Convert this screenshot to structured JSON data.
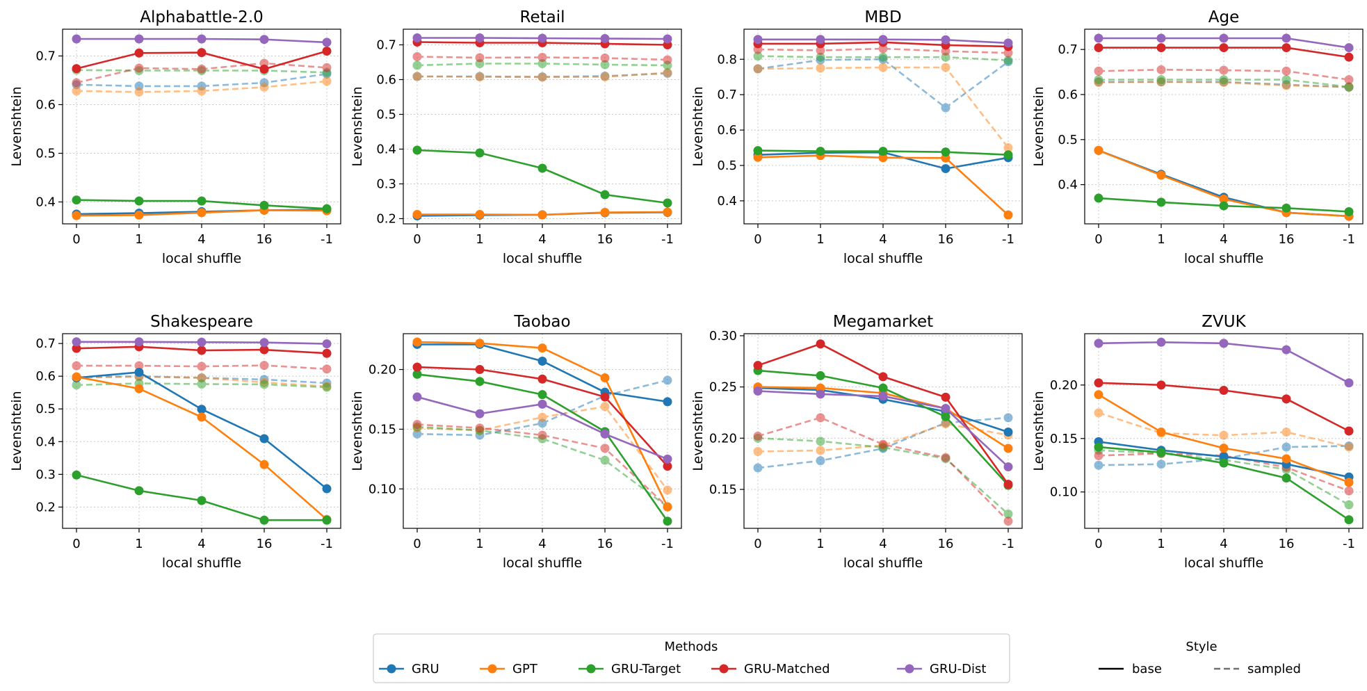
{
  "figure": {
    "x_ticks": [
      "0",
      "1",
      "4",
      "16",
      "-1"
    ],
    "legend_methods": {
      "title": "Methods"
    },
    "legend_style": {
      "title": "Style",
      "items": [
        {
          "label": "base",
          "dash": "solid"
        },
        {
          "label": "sampled",
          "dash": "dashed"
        }
      ]
    },
    "colors": {
      "GRU": "#1f77b4",
      "GPT": "#ff7f0e",
      "GRU-Target": "#2ca02c",
      "GRU-Matched": "#d62728",
      "GRU-Dist": "#9467bd"
    },
    "legend_placement": "bottom-center (Methods), bottom-right (Style)",
    "grid": true
  },
  "chart_data": [
    {
      "type": "line",
      "title": "Alphabattle-2.0",
      "xlabel": "local shuffle",
      "ylabel": "Levenshtein",
      "categories": [
        "0",
        "1",
        "4",
        "16",
        "-1"
      ],
      "ylim": [
        0.355,
        0.755
      ],
      "yticks": [
        0.4,
        0.5,
        0.6,
        0.7
      ],
      "series": [
        {
          "name": "GRU",
          "style": "base",
          "values": [
            0.375,
            0.377,
            0.38,
            0.383,
            0.384
          ]
        },
        {
          "name": "GPT",
          "style": "base",
          "values": [
            0.372,
            0.373,
            0.378,
            0.383,
            0.382
          ]
        },
        {
          "name": "GRU-Target",
          "style": "base",
          "values": [
            0.404,
            0.402,
            0.402,
            0.393,
            0.386
          ]
        },
        {
          "name": "GRU-Matched",
          "style": "base",
          "values": [
            0.674,
            0.706,
            0.707,
            0.673,
            0.71
          ]
        },
        {
          "name": "GRU-Dist",
          "style": "base",
          "values": [
            0.735,
            0.735,
            0.735,
            0.734,
            0.728
          ]
        },
        {
          "name": "GRU",
          "style": "sampled",
          "values": [
            0.641,
            0.638,
            0.638,
            0.645,
            0.663
          ]
        },
        {
          "name": "GPT",
          "style": "sampled",
          "values": [
            0.628,
            0.626,
            0.628,
            0.636,
            0.648
          ]
        },
        {
          "name": "GRU-Target",
          "style": "sampled",
          "values": [
            0.671,
            0.67,
            0.67,
            0.67,
            0.666
          ]
        },
        {
          "name": "GRU-Matched",
          "style": "sampled",
          "values": [
            0.645,
            0.675,
            0.673,
            0.685,
            0.676
          ]
        }
      ]
    },
    {
      "type": "line",
      "title": "Retail",
      "xlabel": "local shuffle",
      "ylabel": "Levenshtein",
      "categories": [
        "0",
        "1",
        "4",
        "16",
        "-1"
      ],
      "ylim": [
        0.185,
        0.745
      ],
      "yticks": [
        0.2,
        0.3,
        0.4,
        0.5,
        0.6,
        0.7
      ],
      "series": [
        {
          "name": "GRU",
          "style": "base",
          "values": [
            0.208,
            0.21,
            0.211,
            0.217,
            0.218
          ]
        },
        {
          "name": "GPT",
          "style": "base",
          "values": [
            0.212,
            0.212,
            0.211,
            0.218,
            0.219
          ]
        },
        {
          "name": "GRU-Target",
          "style": "base",
          "values": [
            0.397,
            0.389,
            0.345,
            0.269,
            0.245
          ]
        },
        {
          "name": "GRU-Matched",
          "style": "base",
          "values": [
            0.708,
            0.706,
            0.706,
            0.703,
            0.7
          ]
        },
        {
          "name": "GRU-Dist",
          "style": "base",
          "values": [
            0.72,
            0.72,
            0.719,
            0.718,
            0.717
          ]
        },
        {
          "name": "GRU",
          "style": "sampled",
          "values": [
            0.609,
            0.609,
            0.608,
            0.61,
            0.618
          ]
        },
        {
          "name": "GPT",
          "style": "sampled",
          "values": [
            0.609,
            0.608,
            0.607,
            0.608,
            0.62
          ]
        },
        {
          "name": "GRU-Target",
          "style": "sampled",
          "values": [
            0.641,
            0.646,
            0.646,
            0.643,
            0.641
          ]
        },
        {
          "name": "GRU-Matched",
          "style": "sampled",
          "values": [
            0.666,
            0.663,
            0.664,
            0.662,
            0.657
          ]
        }
      ]
    },
    {
      "type": "line",
      "title": "MBD",
      "xlabel": "local shuffle",
      "ylabel": "Levenshtein",
      "categories": [
        "0",
        "1",
        "4",
        "16",
        "-1"
      ],
      "ylim": [
        0.335,
        0.885
      ],
      "yticks": [
        0.4,
        0.5,
        0.6,
        0.7,
        0.8
      ],
      "series": [
        {
          "name": "GRU",
          "style": "base",
          "values": [
            0.53,
            0.536,
            0.537,
            0.491,
            0.522
          ]
        },
        {
          "name": "GPT",
          "style": "base",
          "values": [
            0.523,
            0.528,
            0.522,
            0.521,
            0.36
          ]
        },
        {
          "name": "GRU-Target",
          "style": "base",
          "values": [
            0.542,
            0.54,
            0.54,
            0.538,
            0.53
          ]
        },
        {
          "name": "GRU-Matched",
          "style": "base",
          "values": [
            0.844,
            0.844,
            0.848,
            0.84,
            0.836
          ]
        },
        {
          "name": "GRU-Dist",
          "style": "base",
          "values": [
            0.856,
            0.856,
            0.856,
            0.855,
            0.846
          ]
        },
        {
          "name": "GRU",
          "style": "sampled",
          "values": [
            0.773,
            0.798,
            0.8,
            0.663,
            0.793
          ]
        },
        {
          "name": "GPT",
          "style": "sampled",
          "values": [
            0.773,
            0.775,
            0.777,
            0.777,
            0.55
          ]
        },
        {
          "name": "GRU-Target",
          "style": "sampled",
          "values": [
            0.809,
            0.806,
            0.806,
            0.806,
            0.797
          ]
        },
        {
          "name": "GRU-Matched",
          "style": "sampled",
          "values": [
            0.828,
            0.825,
            0.83,
            0.823,
            0.818
          ]
        }
      ]
    },
    {
      "type": "line",
      "title": "Age",
      "xlabel": "local shuffle",
      "ylabel": "Levenshtein",
      "categories": [
        "0",
        "1",
        "4",
        "16",
        "-1"
      ],
      "ylim": [
        0.313,
        0.745
      ],
      "yticks": [
        0.4,
        0.5,
        0.6,
        0.7
      ],
      "series": [
        {
          "name": "GRU",
          "style": "base",
          "values": [
            0.476,
            0.423,
            0.372,
            0.338,
            0.33
          ]
        },
        {
          "name": "GPT",
          "style": "base",
          "values": [
            0.476,
            0.421,
            0.368,
            0.338,
            0.33
          ]
        },
        {
          "name": "GRU-Target",
          "style": "base",
          "values": [
            0.37,
            0.361,
            0.353,
            0.348,
            0.34
          ]
        },
        {
          "name": "GRU-Matched",
          "style": "base",
          "values": [
            0.704,
            0.704,
            0.704,
            0.704,
            0.683
          ]
        },
        {
          "name": "GRU-Dist",
          "style": "base",
          "values": [
            0.725,
            0.725,
            0.725,
            0.725,
            0.704
          ]
        },
        {
          "name": "GRU",
          "style": "sampled",
          "values": [
            0.628,
            0.628,
            0.628,
            0.622,
            0.616
          ]
        },
        {
          "name": "GPT",
          "style": "sampled",
          "values": [
            0.627,
            0.628,
            0.627,
            0.62,
            0.617
          ]
        },
        {
          "name": "GRU-Target",
          "style": "sampled",
          "values": [
            0.633,
            0.633,
            0.633,
            0.633,
            0.617
          ]
        },
        {
          "name": "GRU-Matched",
          "style": "sampled",
          "values": [
            0.652,
            0.655,
            0.654,
            0.652,
            0.633
          ]
        }
      ]
    },
    {
      "type": "line",
      "title": "Shakespeare",
      "xlabel": "local shuffle",
      "ylabel": "Levenshtein",
      "categories": [
        "0",
        "1",
        "4",
        "16",
        "-1"
      ],
      "ylim": [
        0.135,
        0.73
      ],
      "yticks": [
        0.2,
        0.3,
        0.4,
        0.5,
        0.6,
        0.7
      ],
      "series": [
        {
          "name": "GRU",
          "style": "base",
          "values": [
            0.595,
            0.612,
            0.499,
            0.409,
            0.256
          ]
        },
        {
          "name": "GPT",
          "style": "base",
          "values": [
            0.598,
            0.562,
            0.475,
            0.33,
            0.162
          ]
        },
        {
          "name": "GRU-Target",
          "style": "base",
          "values": [
            0.298,
            0.25,
            0.22,
            0.16,
            0.16
          ]
        },
        {
          "name": "GRU-Matched",
          "style": "base",
          "values": [
            0.685,
            0.69,
            0.679,
            0.681,
            0.67
          ]
        },
        {
          "name": "GRU-Dist",
          "style": "base",
          "values": [
            0.705,
            0.705,
            0.704,
            0.703,
            0.699
          ]
        },
        {
          "name": "GRU",
          "style": "sampled",
          "values": [
            0.597,
            0.6,
            0.595,
            0.59,
            0.579
          ]
        },
        {
          "name": "GPT",
          "style": "sampled",
          "values": [
            0.596,
            0.598,
            0.595,
            0.581,
            0.569
          ]
        },
        {
          "name": "GRU-Target",
          "style": "sampled",
          "values": [
            0.573,
            0.578,
            0.576,
            0.575,
            0.566
          ]
        },
        {
          "name": "GRU-Matched",
          "style": "sampled",
          "values": [
            0.632,
            0.632,
            0.63,
            0.633,
            0.622
          ]
        }
      ]
    },
    {
      "type": "line",
      "title": "Taobao",
      "xlabel": "local shuffle",
      "ylabel": "Levenshtein",
      "categories": [
        "0",
        "1",
        "4",
        "16",
        "-1"
      ],
      "ylim": [
        0.067,
        0.23
      ],
      "yticks": [
        0.1,
        0.15,
        0.2
      ],
      "series": [
        {
          "name": "GRU",
          "style": "base",
          "values": [
            0.221,
            0.221,
            0.207,
            0.181,
            0.173
          ]
        },
        {
          "name": "GPT",
          "style": "base",
          "values": [
            0.223,
            0.222,
            0.218,
            0.193,
            0.085
          ]
        },
        {
          "name": "GRU-Target",
          "style": "base",
          "values": [
            0.196,
            0.19,
            0.179,
            0.148,
            0.073
          ]
        },
        {
          "name": "GRU-Matched",
          "style": "base",
          "values": [
            0.202,
            0.2,
            0.192,
            0.177,
            0.119
          ]
        },
        {
          "name": "GRU-Dist",
          "style": "base",
          "values": [
            0.177,
            0.163,
            0.171,
            0.146,
            0.125
          ]
        },
        {
          "name": "GRU",
          "style": "sampled",
          "values": [
            0.146,
            0.145,
            0.155,
            0.178,
            0.191
          ]
        },
        {
          "name": "GPT",
          "style": "sampled",
          "values": [
            0.151,
            0.149,
            0.16,
            0.169,
            0.099
          ]
        },
        {
          "name": "GRU-Target",
          "style": "sampled",
          "values": [
            0.152,
            0.149,
            0.142,
            0.124,
            0.085
          ]
        },
        {
          "name": "GRU-Matched",
          "style": "sampled",
          "values": [
            0.154,
            0.151,
            0.145,
            0.134,
            0.085
          ]
        }
      ]
    },
    {
      "type": "line",
      "title": "Megamarket",
      "xlabel": "local shuffle",
      "ylabel": "Levenshtein",
      "categories": [
        "0",
        "1",
        "4",
        "16",
        "-1"
      ],
      "ylim": [
        0.112,
        0.302
      ],
      "yticks": [
        0.15,
        0.2,
        0.25,
        0.3
      ],
      "series": [
        {
          "name": "GRU",
          "style": "base",
          "values": [
            0.249,
            0.247,
            0.238,
            0.226,
            0.206
          ]
        },
        {
          "name": "GPT",
          "style": "base",
          "values": [
            0.25,
            0.249,
            0.244,
            0.229,
            0.19
          ]
        },
        {
          "name": "GRU-Target",
          "style": "base",
          "values": [
            0.266,
            0.261,
            0.249,
            0.221,
            0.154
          ]
        },
        {
          "name": "GRU-Matched",
          "style": "base",
          "values": [
            0.271,
            0.292,
            0.26,
            0.24,
            0.155
          ]
        },
        {
          "name": "GRU-Dist",
          "style": "base",
          "values": [
            0.246,
            0.243,
            0.241,
            0.229,
            0.172
          ]
        },
        {
          "name": "GRU",
          "style": "sampled",
          "values": [
            0.171,
            0.178,
            0.19,
            0.215,
            0.22
          ]
        },
        {
          "name": "GPT",
          "style": "sampled",
          "values": [
            0.187,
            0.188,
            0.193,
            0.214,
            0.203
          ]
        },
        {
          "name": "GRU-Target",
          "style": "sampled",
          "values": [
            0.2,
            0.197,
            0.191,
            0.18,
            0.126
          ]
        },
        {
          "name": "GRU-Matched",
          "style": "sampled",
          "values": [
            0.202,
            0.22,
            0.194,
            0.181,
            0.119
          ]
        }
      ]
    },
    {
      "type": "line",
      "title": "ZVUK",
      "xlabel": "local shuffle",
      "ylabel": "Levenshtein",
      "categories": [
        "0",
        "1",
        "4",
        "16",
        "-1"
      ],
      "ylim": [
        0.066,
        0.248
      ],
      "yticks": [
        0.1,
        0.15,
        0.2
      ],
      "series": [
        {
          "name": "GRU",
          "style": "base",
          "values": [
            0.147,
            0.139,
            0.133,
            0.126,
            0.114
          ]
        },
        {
          "name": "GPT",
          "style": "base",
          "values": [
            0.191,
            0.156,
            0.141,
            0.131,
            0.109
          ]
        },
        {
          "name": "GRU-Target",
          "style": "base",
          "values": [
            0.142,
            0.137,
            0.127,
            0.113,
            0.074
          ]
        },
        {
          "name": "GRU-Matched",
          "style": "base",
          "values": [
            0.202,
            0.2,
            0.195,
            0.187,
            0.157
          ]
        },
        {
          "name": "GRU-Dist",
          "style": "base",
          "values": [
            0.239,
            0.24,
            0.239,
            0.233,
            0.202
          ]
        },
        {
          "name": "GRU",
          "style": "sampled",
          "values": [
            0.125,
            0.126,
            0.131,
            0.142,
            0.143
          ]
        },
        {
          "name": "GPT",
          "style": "sampled",
          "values": [
            0.174,
            0.155,
            0.153,
            0.156,
            0.142
          ]
        },
        {
          "name": "GRU-Target",
          "style": "sampled",
          "values": [
            0.139,
            0.136,
            0.13,
            0.121,
            0.088
          ]
        },
        {
          "name": "GRU-Matched",
          "style": "sampled",
          "values": [
            0.134,
            0.136,
            0.134,
            0.123,
            0.101
          ]
        }
      ]
    }
  ]
}
